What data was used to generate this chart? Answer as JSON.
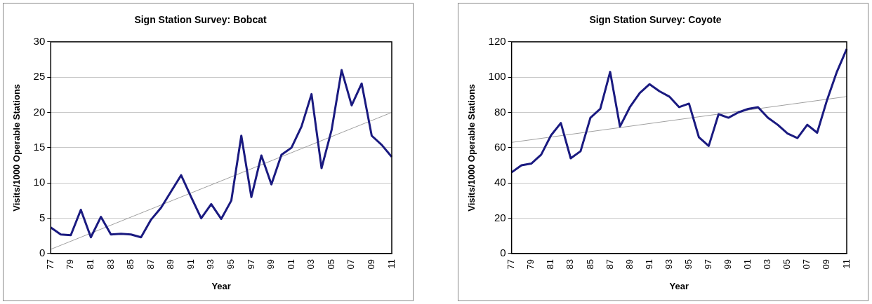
{
  "chart_data": [
    {
      "type": "line",
      "title": "Sign Station Survey: Bobcat",
      "xlabel": "Year",
      "ylabel": "Visits/1000 Operable Stations",
      "categories": [
        "77",
        null,
        "79",
        null,
        "81",
        null,
        "83",
        null,
        "85",
        null,
        "87",
        null,
        "89",
        null,
        "91",
        null,
        "93",
        null,
        "95",
        null,
        "97",
        null,
        "99",
        null,
        "01",
        null,
        "03",
        null,
        "05",
        null,
        "07",
        null,
        "09",
        null,
        "11"
      ],
      "series": [
        {
          "color": "#1a1a80",
          "values": [
            3.7,
            2.7,
            2.6,
            6.2,
            2.3,
            5.2,
            2.7,
            2.8,
            2.7,
            2.3,
            4.8,
            6.5,
            8.8,
            11.1,
            8.0,
            5.0,
            7.0,
            4.9,
            7.5,
            16.7,
            8.0,
            13.9,
            9.8,
            14.0,
            15.0,
            18.0,
            22.6,
            12.1,
            17.5,
            26.0,
            21.0,
            24.1,
            16.7,
            15.4,
            13.7
          ]
        },
        {
          "color": "#a0a0a0",
          "values": [
            0.6,
            null,
            null,
            null,
            null,
            null,
            null,
            null,
            null,
            null,
            null,
            null,
            null,
            null,
            null,
            null,
            null,
            null,
            null,
            null,
            null,
            null,
            null,
            null,
            null,
            null,
            null,
            null,
            null,
            null,
            null,
            null,
            null,
            null,
            20.0
          ]
        }
      ],
      "ylim": [
        0,
        30
      ],
      "yticks": [
        0,
        5,
        10,
        15,
        20,
        25,
        30
      ],
      "grid": "y",
      "marker": "none"
    },
    {
      "type": "line",
      "title": "Sign Station Survey: Coyote",
      "xlabel": "Year",
      "ylabel": "Visits/1000 Operable Stations",
      "categories": [
        "77",
        null,
        "79",
        null,
        "81",
        null,
        "83",
        null,
        "85",
        null,
        "87",
        null,
        "89",
        null,
        "91",
        null,
        "93",
        null,
        "95",
        null,
        "97",
        null,
        "99",
        null,
        "01",
        null,
        "03",
        null,
        "05",
        null,
        "07",
        null,
        "09",
        null,
        "11"
      ],
      "series": [
        {
          "color": "#1a1a80",
          "values": [
            46,
            50,
            51,
            56,
            67,
            74,
            54,
            58,
            77,
            82,
            103,
            72,
            83,
            91,
            96,
            92,
            89,
            83,
            85,
            66,
            61,
            79,
            77,
            80,
            82,
            83,
            77,
            73,
            68,
            65.5,
            73,
            68.5,
            87,
            103,
            116
          ]
        },
        {
          "color": "#a0a0a0",
          "values": [
            63,
            null,
            null,
            null,
            null,
            null,
            null,
            null,
            null,
            null,
            null,
            null,
            null,
            null,
            null,
            null,
            null,
            null,
            null,
            null,
            null,
            null,
            null,
            null,
            null,
            null,
            null,
            null,
            null,
            null,
            null,
            null,
            null,
            null,
            89
          ]
        }
      ],
      "ylim": [
        0,
        120
      ],
      "yticks": [
        0,
        20,
        40,
        60,
        80,
        100,
        120
      ],
      "grid": "y",
      "marker": "none"
    }
  ]
}
